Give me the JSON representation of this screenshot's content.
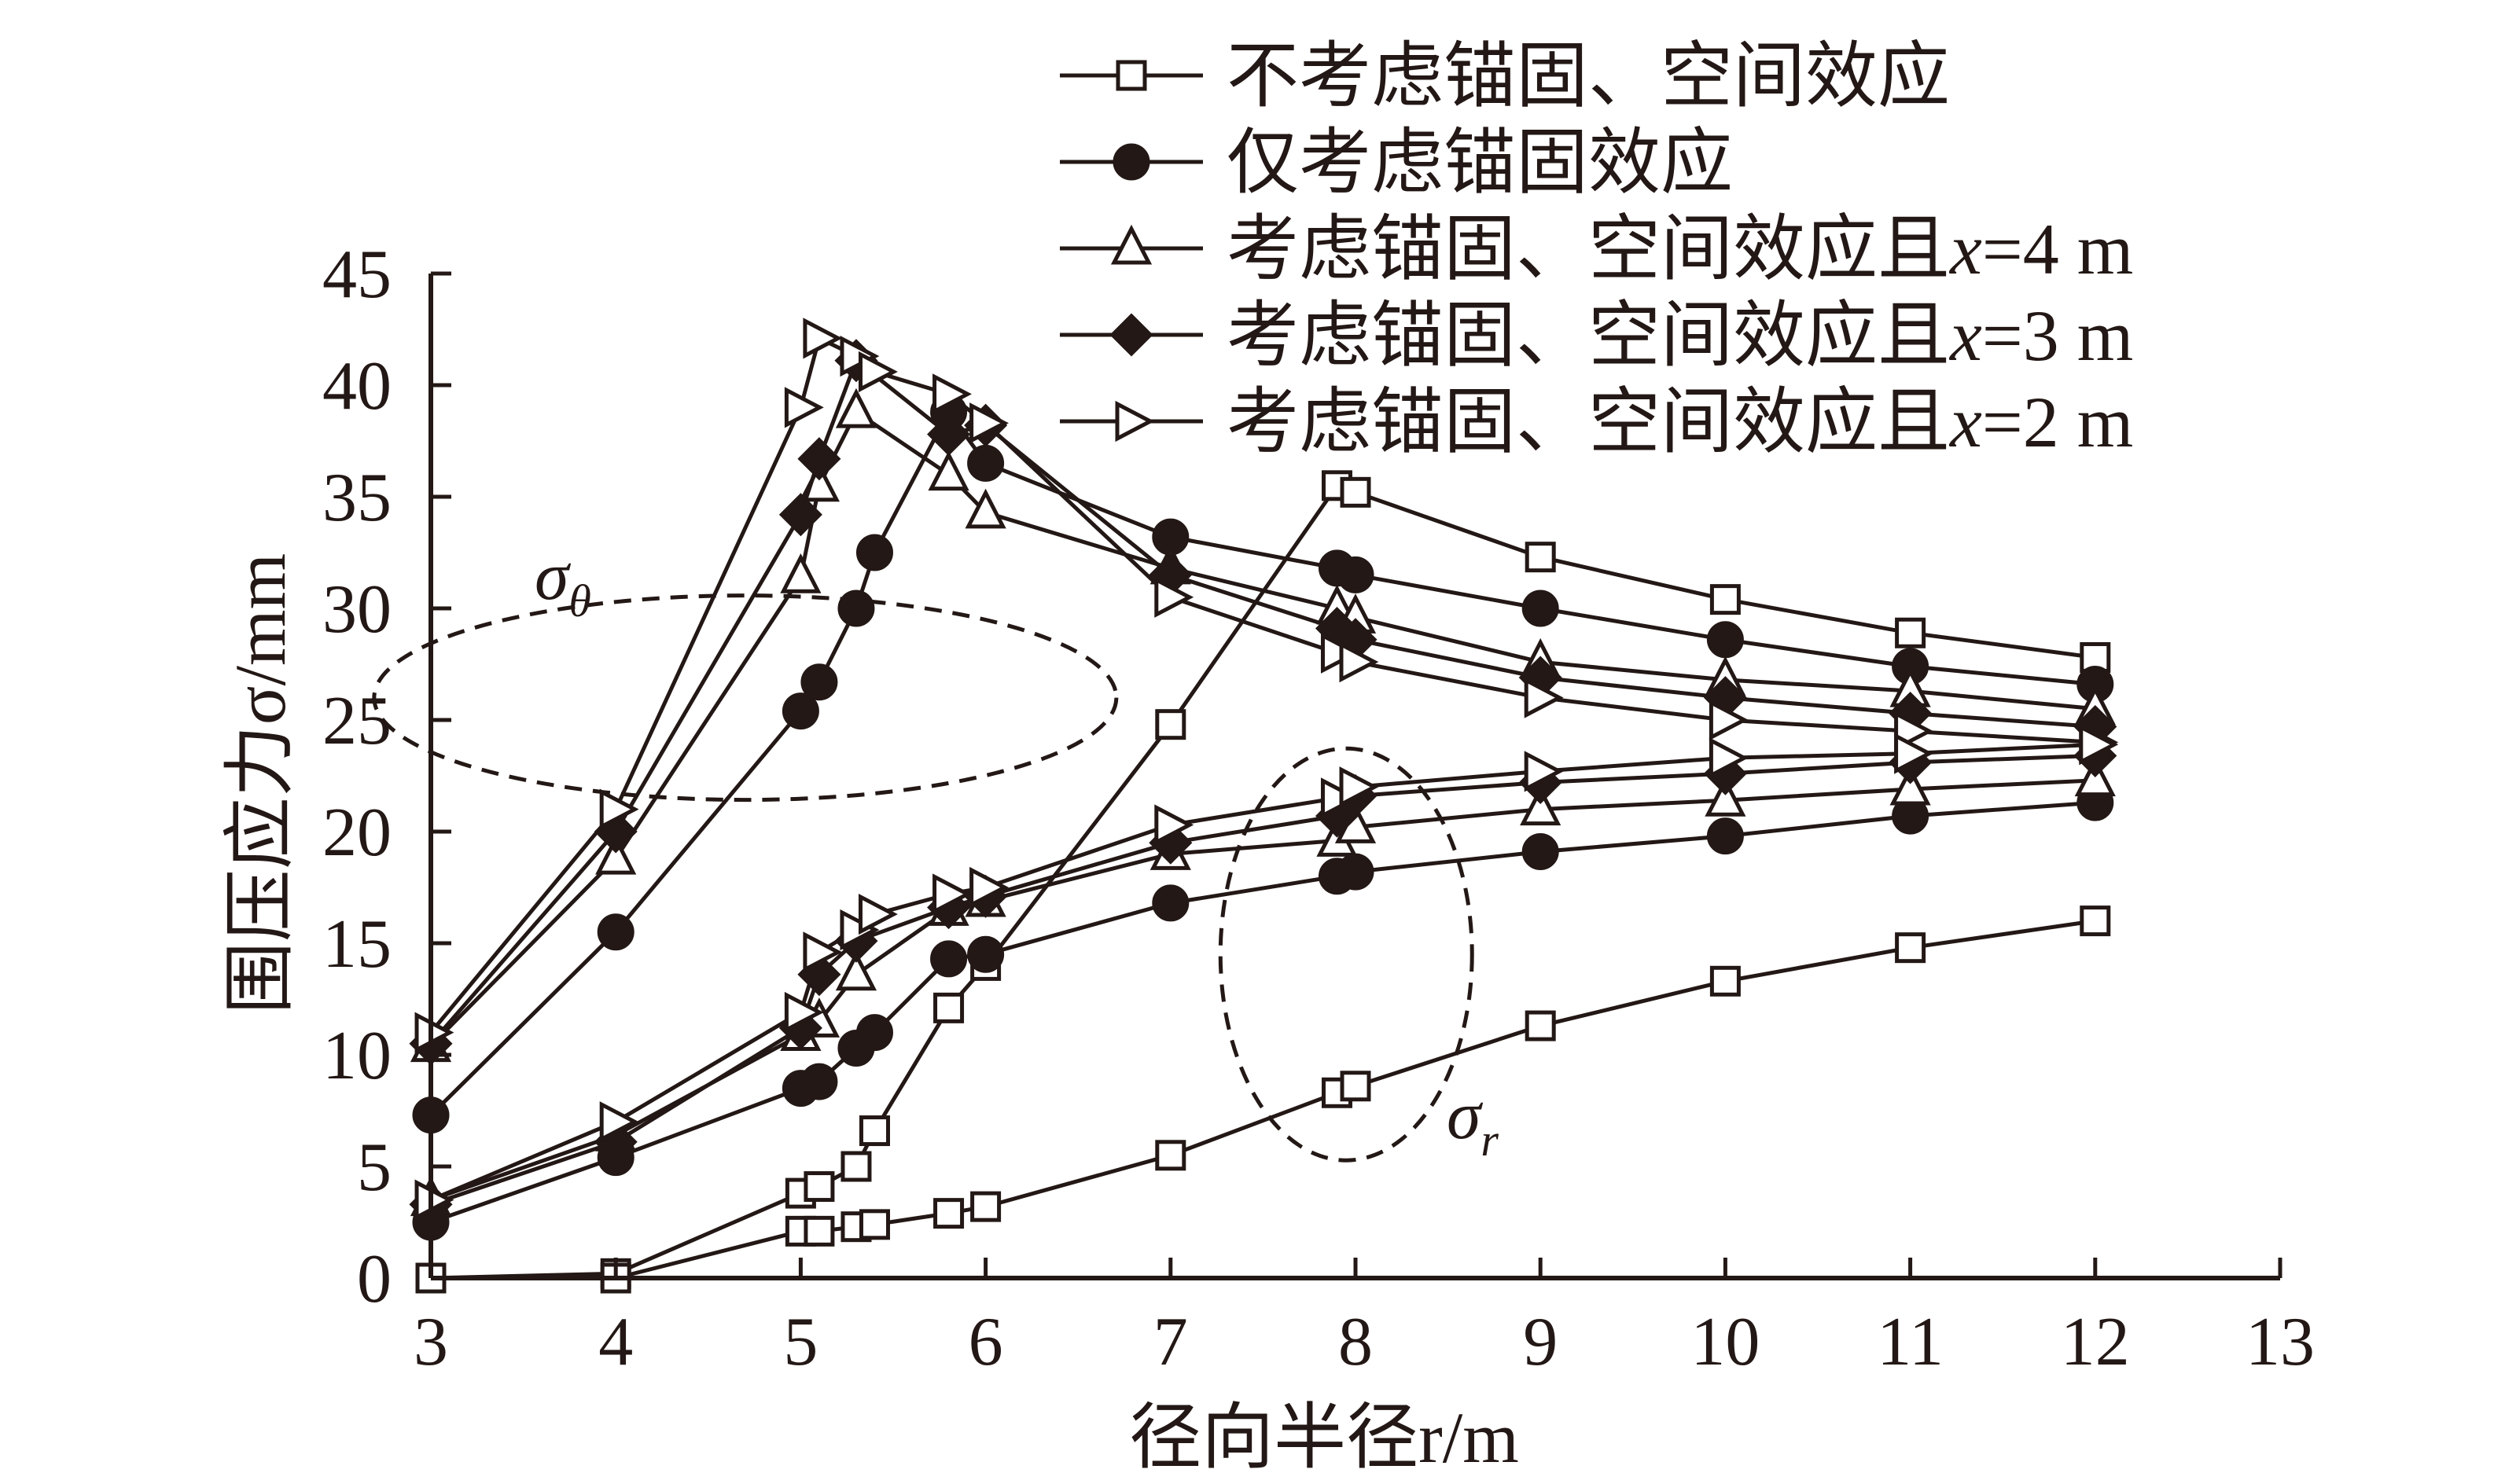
{
  "chart_data": {
    "type": "line",
    "title": "",
    "xlabel": "径向半径r/m",
    "ylabel": "围压应力σ/mm",
    "xlim": [
      3,
      13
    ],
    "ylim": [
      0,
      45
    ],
    "xticks": [
      "3",
      "4",
      "5",
      "6",
      "7",
      "8",
      "9",
      "10",
      "11",
      "12",
      "13"
    ],
    "yticks": [
      "0",
      "5",
      "10",
      "15",
      "20",
      "25",
      "30",
      "35",
      "40",
      "45"
    ],
    "grid": false,
    "legend_position": "top-right",
    "annotations": [
      {
        "text": "σθ",
        "base": "σ",
        "sub": "θ",
        "target": "sigma_theta (hoop stress) curves, dashed ellipse"
      },
      {
        "text": "σr",
        "base": "σ",
        "sub": "r",
        "target": "sigma_r (radial stress) curves, dashed ellipse"
      }
    ],
    "series": [
      {
        "name": "不考虑锚固、空间效应",
        "marker": "square-open",
        "sigma_theta": {
          "x": [
            3,
            4,
            5,
            5.1,
            5.3,
            5.4,
            5.8,
            6,
            7,
            7.9,
            8,
            9,
            10,
            11,
            12
          ],
          "y": [
            0,
            0.2,
            3.8,
            4.1,
            5,
            6.6,
            12.1,
            14,
            24.8,
            35.5,
            35.2,
            32.3,
            30.4,
            28.9,
            27.8
          ]
        },
        "sigma_r": {
          "x": [
            3,
            4,
            5,
            5.1,
            5.3,
            5.4,
            5.8,
            6,
            7,
            7.9,
            8,
            9,
            10,
            11,
            12
          ],
          "y": [
            0,
            0,
            2.1,
            2.1,
            2.3,
            2.4,
            2.9,
            3.2,
            5.5,
            8.3,
            8.6,
            11.3,
            13.3,
            14.8,
            16
          ]
        }
      },
      {
        "name": "仅考虑锚固效应",
        "marker": "circle-filled",
        "sigma_theta": {
          "x": [
            3,
            4,
            5,
            5.1,
            5.3,
            5.4,
            5.8,
            6,
            7,
            7.9,
            8,
            9,
            10,
            11,
            12
          ],
          "y": [
            7.3,
            15.5,
            25.4,
            26.7,
            30,
            32.5,
            38.8,
            36.5,
            33.2,
            31.8,
            31.5,
            30,
            28.6,
            27.4,
            26.6
          ]
        },
        "sigma_r": {
          "x": [
            3,
            4,
            5,
            5.1,
            5.3,
            5.4,
            5.8,
            6,
            7,
            7.9,
            8,
            9,
            10,
            11,
            12
          ],
          "y": [
            2.5,
            5.4,
            8.5,
            8.8,
            10.3,
            11,
            14.3,
            14.5,
            16.8,
            18,
            18.2,
            19.1,
            19.8,
            20.7,
            21.3
          ]
        }
      },
      {
        "name": "考虑锚固、空间效应且x=4 m",
        "name_prefix": "考虑锚固、空间效应且",
        "name_var": "x",
        "name_suffix": "=4 m",
        "marker": "triangle-up-open",
        "sigma_theta": {
          "x": [
            3,
            4,
            5,
            5.1,
            5.3,
            5.8,
            6,
            7,
            7.9,
            8,
            9,
            10,
            11,
            12
          ],
          "y": [
            10.4,
            18.8,
            31.4,
            35.5,
            38.8,
            36,
            34.3,
            31.8,
            30,
            29.6,
            27.6,
            26.8,
            26.3,
            25.5
          ]
        },
        "sigma_r": {
          "x": [
            3,
            4,
            5,
            5.1,
            5.3,
            5.8,
            6,
            7,
            7.9,
            8,
            9,
            10,
            11,
            12
          ],
          "y": [
            3.5,
            6.4,
            10.9,
            11.5,
            13.6,
            16.5,
            16.9,
            19,
            19.6,
            20.2,
            21,
            21.4,
            21.9,
            22.3
          ]
        }
      },
      {
        "name": "考虑锚固、空间效应且x=3 m",
        "name_prefix": "考虑锚固、空间效应且",
        "name_var": "x",
        "name_suffix": "=3 m",
        "marker": "diamond-filled",
        "sigma_theta": {
          "x": [
            3,
            4,
            5,
            5.1,
            5.3,
            5.8,
            6,
            7,
            7.9,
            8,
            9,
            10,
            11,
            12
          ],
          "y": [
            10.5,
            20,
            34.2,
            36.7,
            41.1,
            37.8,
            38.2,
            31.5,
            29.1,
            28.6,
            26.9,
            26,
            25.3,
            24.7
          ]
        },
        "sigma_r": {
          "x": [
            3,
            4,
            5,
            5.1,
            5.3,
            5.8,
            6,
            7,
            7.9,
            8,
            9,
            10,
            11,
            12
          ],
          "y": [
            3.3,
            6.1,
            11.2,
            13.6,
            15.1,
            16.6,
            17.1,
            19.5,
            20.7,
            21.6,
            22.2,
            22.6,
            23.1,
            23.4
          ]
        }
      },
      {
        "name": "考虑锚固、空间效应且x=2 m",
        "name_prefix": "考虑锚固、空间效应且",
        "name_var": "x",
        "name_suffix": "=2 m",
        "marker": "triangle-right-open",
        "sigma_theta": {
          "x": [
            3,
            4,
            5,
            5.1,
            5.3,
            5.4,
            5.8,
            6,
            7,
            7.9,
            8,
            9,
            10,
            11,
            12
          ],
          "y": [
            11,
            21,
            39,
            42.1,
            41.3,
            40.6,
            39.6,
            38.3,
            30.5,
            28,
            27.6,
            26,
            25,
            24.5,
            24
          ]
        },
        "sigma_r": {
          "x": [
            3,
            4,
            5,
            5.1,
            5.3,
            5.4,
            5.8,
            6,
            7,
            7.9,
            8,
            9,
            10,
            11,
            12
          ],
          "y": [
            3.5,
            7,
            11.9,
            14.6,
            15.6,
            16.3,
            17.2,
            17.5,
            20.3,
            21.5,
            22,
            22.7,
            23.3,
            23.5,
            23.9
          ]
        }
      }
    ]
  }
}
